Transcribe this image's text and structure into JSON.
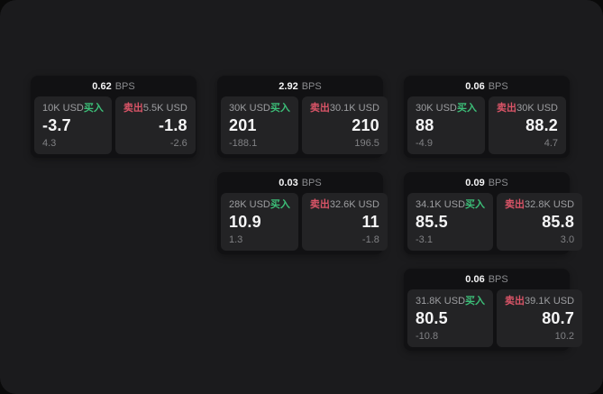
{
  "colors": {
    "outer-bg": "#0a0a0a",
    "page-bg": "#1b1b1d",
    "card-bg": "#111113",
    "panel-bg": "#232325",
    "buy-green": "#3cbe78",
    "sell-red": "#d95467",
    "text-bright": "#f5f5f6",
    "text-dim": "#9d9ea1",
    "text-faint": "#808184",
    "suffix-gray": "#8b8c8f"
  },
  "labels": {
    "bps_suffix": "BPS",
    "buy": "买入",
    "sell": "卖出"
  },
  "cards": [
    {
      "bps": "0.62",
      "row": 1,
      "col": 1,
      "buy": {
        "amount": "10K USD",
        "value": "-3.7",
        "sub": "4.3"
      },
      "sell": {
        "amount": "5.5K USD",
        "value": "-1.8",
        "sub": "-2.6"
      }
    },
    {
      "bps": "2.92",
      "row": 1,
      "col": 2,
      "buy": {
        "amount": "30K USD",
        "value": "201",
        "sub": "-188.1"
      },
      "sell": {
        "amount": "30.1K USD",
        "value": "210",
        "sub": "196.5"
      }
    },
    {
      "bps": "0.06",
      "row": 1,
      "col": 3,
      "buy": {
        "amount": "30K USD",
        "value": "88",
        "sub": "-4.9"
      },
      "sell": {
        "amount": "30K USD",
        "value": "88.2",
        "sub": "4.7"
      }
    },
    {
      "bps": "0.03",
      "row": 2,
      "col": 2,
      "buy": {
        "amount": "28K USD",
        "value": "10.9",
        "sub": "1.3"
      },
      "sell": {
        "amount": "32.6K USD",
        "value": "11",
        "sub": "-1.8"
      }
    },
    {
      "bps": "0.09",
      "row": 2,
      "col": 3,
      "buy": {
        "amount": "34.1K USD",
        "value": "85.5",
        "sub": "-3.1"
      },
      "sell": {
        "amount": "32.8K USD",
        "value": "85.8",
        "sub": "3.0"
      }
    },
    {
      "bps": "0.06",
      "row": 3,
      "col": 3,
      "buy": {
        "amount": "31.8K USD",
        "value": "80.5",
        "sub": "-10.8"
      },
      "sell": {
        "amount": "39.1K USD",
        "value": "80.7",
        "sub": "10.2"
      }
    }
  ]
}
